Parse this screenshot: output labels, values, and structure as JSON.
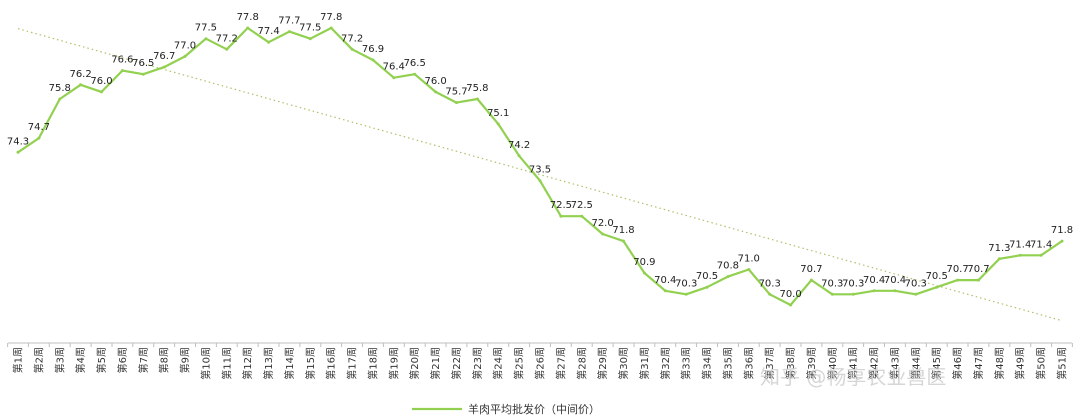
{
  "chart_data": {
    "type": "line",
    "title": "",
    "xlabel": "",
    "ylabel": "",
    "categories": [
      "第1周",
      "第2周",
      "第3周",
      "第4周",
      "第5周",
      "第6周",
      "第7周",
      "第8周",
      "第9周",
      "第10周",
      "第11周",
      "第12周",
      "第13周",
      "第14周",
      "第15周",
      "第16周",
      "第17周",
      "第18周",
      "第19周",
      "第20周",
      "第21周",
      "第22周",
      "第23周",
      "第24周",
      "第25周",
      "第26周",
      "第27周",
      "第28周",
      "第29周",
      "第30周",
      "第31周",
      "第32周",
      "第33周",
      "第34周",
      "第35周",
      "第36周",
      "第37周",
      "第38周",
      "第39周",
      "第40周",
      "第41周",
      "第42周",
      "第43周",
      "第44周",
      "第45周",
      "第46周",
      "第47周",
      "第48周",
      "第49周",
      "第50周",
      "第51周"
    ],
    "series": [
      {
        "name": "羊肉平均批发价（中间价）",
        "color": "#92d050",
        "values": [
          74.3,
          74.7,
          75.8,
          76.2,
          76.0,
          76.6,
          76.5,
          76.7,
          77.0,
          77.5,
          77.2,
          77.8,
          77.4,
          77.7,
          77.5,
          77.8,
          77.2,
          76.9,
          76.4,
          76.5,
          76.0,
          75.7,
          75.8,
          75.1,
          74.2,
          73.5,
          72.5,
          72.5,
          72.0,
          71.8,
          70.9,
          70.4,
          70.3,
          70.5,
          70.8,
          71.0,
          70.3,
          70.0,
          70.7,
          70.3,
          70.3,
          70.4,
          70.4,
          70.3,
          70.5,
          70.7,
          70.7,
          71.3,
          71.4,
          71.4,
          71.8
        ]
      }
    ],
    "trendline": {
      "type": "linear",
      "style": "dotted",
      "color": "#a9c46c"
    },
    "ylim": [
      69.5,
      78.5
    ],
    "grid": false,
    "legend_position": "bottom-center"
  },
  "watermark": "知乎 @畅享农业兽医"
}
